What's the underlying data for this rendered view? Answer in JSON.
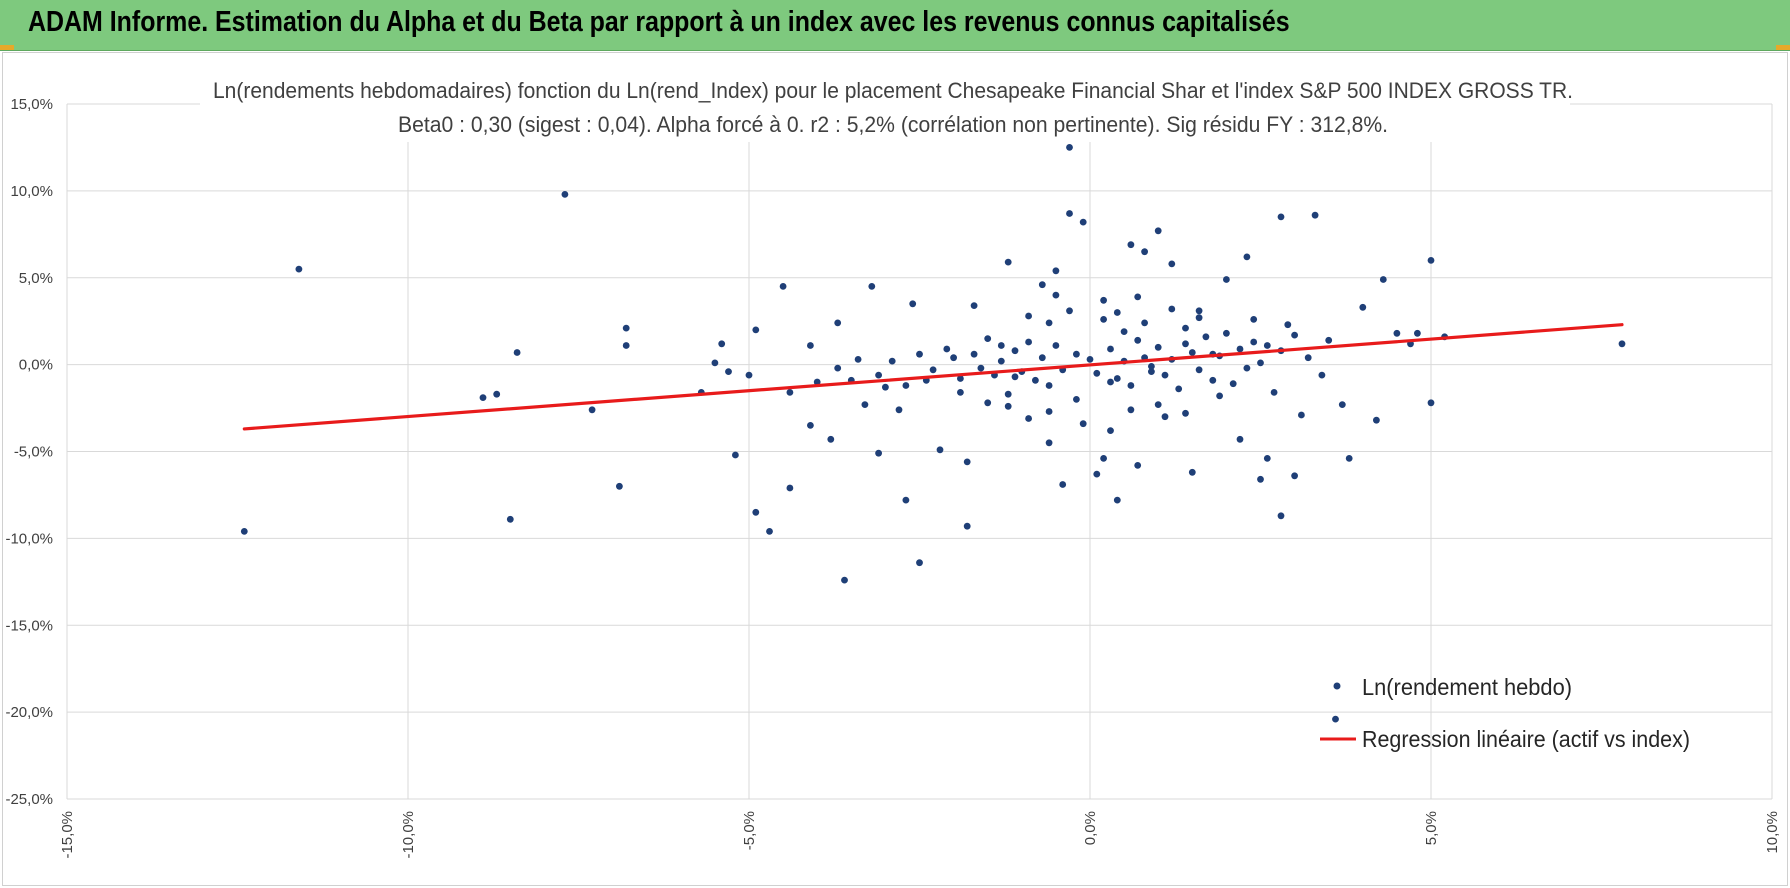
{
  "header": {
    "title": "ADAM Informe. Estimation du Alpha et du Beta par rapport à un index avec les revenus connus capitalisés"
  },
  "colors": {
    "header_bg": "#7ec97e",
    "points": "#1f3f77",
    "regression": "#e81b1b",
    "grid": "#d9d9d9"
  },
  "chart_data": {
    "type": "scatter",
    "title": "Ln(rendements hebdomadaires) fonction du Ln(rend_Index) pour le placement Chesapeake Financial Shar et l'index S&P 500 INDEX GROSS TR.",
    "subtitle": "Beta0 : 0,30 (sigest : 0,04). Alpha forcé à 0. r2 : 5,2% (corrélation non pertinente). Sig résidu FY : 312,8%.",
    "xlabel": "",
    "ylabel": "",
    "xlim": [
      -15,
      10
    ],
    "ylim": [
      -25,
      15
    ],
    "x_ticks": [
      "-15,0%",
      "-10,0%",
      "-5,0%",
      "0,0%",
      "5,0%",
      "10,0%"
    ],
    "y_ticks": [
      "15,0%",
      "10,0%",
      "5,0%",
      "0,0%",
      "-5,0%",
      "-10,0%",
      "-15,0%",
      "-20,0%",
      "-25,0%"
    ],
    "grid": true,
    "legend_position": "bottom-right",
    "series": [
      {
        "name": "Ln(rendement hebdo)",
        "type": "scatter",
        "points": [
          [
            -12.4,
            -9.6
          ],
          [
            -11.6,
            5.5
          ],
          [
            -8.4,
            0.7
          ],
          [
            -8.5,
            -8.9
          ],
          [
            -8.9,
            -1.9
          ],
          [
            -8.7,
            -1.7
          ],
          [
            -7.7,
            9.8
          ],
          [
            -7.3,
            -2.6
          ],
          [
            -6.9,
            -7.0
          ],
          [
            -6.8,
            2.1
          ],
          [
            -6.8,
            1.1
          ],
          [
            -5.7,
            -1.6
          ],
          [
            -5.5,
            0.1
          ],
          [
            -5.4,
            1.2
          ],
          [
            -5.3,
            -0.4
          ],
          [
            -5.2,
            -5.2
          ],
          [
            -5.0,
            -0.6
          ],
          [
            -4.9,
            -8.5
          ],
          [
            -4.9,
            2.0
          ],
          [
            -4.7,
            -9.6
          ],
          [
            -4.5,
            4.5
          ],
          [
            -4.4,
            -7.1
          ],
          [
            -4.4,
            -1.6
          ],
          [
            -4.1,
            -3.5
          ],
          [
            -4.1,
            1.1
          ],
          [
            -3.8,
            -4.3
          ],
          [
            -3.7,
            2.4
          ],
          [
            -3.6,
            -12.4
          ],
          [
            -3.5,
            -0.9
          ],
          [
            -3.3,
            -2.3
          ],
          [
            -3.2,
            4.5
          ],
          [
            -3.1,
            -5.1
          ],
          [
            -3.0,
            -1.3
          ],
          [
            -2.8,
            -2.6
          ],
          [
            -2.7,
            -7.8
          ],
          [
            -2.6,
            3.5
          ],
          [
            -2.5,
            -11.4
          ],
          [
            -2.4,
            -0.9
          ],
          [
            -2.2,
            -4.9
          ],
          [
            -2.1,
            0.9
          ],
          [
            -1.9,
            -1.6
          ],
          [
            -1.8,
            -9.3
          ],
          [
            -1.8,
            -5.6
          ],
          [
            -1.7,
            3.4
          ],
          [
            -1.5,
            -2.2
          ],
          [
            -1.3,
            1.1
          ],
          [
            -1.2,
            5.9
          ],
          [
            -1.1,
            -0.7
          ],
          [
            -0.9,
            -3.1
          ],
          [
            -0.7,
            4.6
          ],
          [
            -0.6,
            -4.5
          ],
          [
            -0.6,
            2.4
          ],
          [
            -0.5,
            5.4
          ],
          [
            -0.4,
            -6.9
          ],
          [
            -0.3,
            12.5
          ],
          [
            -0.3,
            8.7
          ],
          [
            -0.2,
            -2.0
          ],
          [
            -0.1,
            8.2
          ],
          [
            0.1,
            -6.3
          ],
          [
            0.2,
            -5.4
          ],
          [
            0.2,
            3.7
          ],
          [
            0.3,
            -1.0
          ],
          [
            0.4,
            -7.8
          ],
          [
            0.5,
            1.9
          ],
          [
            0.6,
            6.9
          ],
          [
            0.7,
            -5.8
          ],
          [
            0.8,
            6.5
          ],
          [
            0.9,
            -0.4
          ],
          [
            1.0,
            7.7
          ],
          [
            1.1,
            -3.0
          ],
          [
            1.2,
            5.8
          ],
          [
            1.4,
            1.2
          ],
          [
            1.5,
            -6.2
          ],
          [
            1.6,
            3.1
          ],
          [
            1.8,
            0.6
          ],
          [
            1.9,
            -1.8
          ],
          [
            2.0,
            4.9
          ],
          [
            2.2,
            -4.3
          ],
          [
            2.3,
            6.2
          ],
          [
            2.4,
            1.3
          ],
          [
            2.5,
            -6.6
          ],
          [
            2.6,
            -5.4
          ],
          [
            2.8,
            8.5
          ],
          [
            2.8,
            -8.7
          ],
          [
            2.9,
            2.3
          ],
          [
            3.0,
            -6.4
          ],
          [
            3.1,
            -2.9
          ],
          [
            3.3,
            8.6
          ],
          [
            3.5,
            1.4
          ],
          [
            3.6,
            -20.4
          ],
          [
            3.7,
            -2.3
          ],
          [
            3.8,
            -5.4
          ],
          [
            4.0,
            3.3
          ],
          [
            4.2,
            -3.2
          ],
          [
            4.3,
            4.9
          ],
          [
            4.5,
            1.8
          ],
          [
            4.7,
            1.2
          ],
          [
            4.8,
            1.8
          ],
          [
            5.0,
            -2.2
          ],
          [
            5.0,
            6.0
          ],
          [
            5.2,
            1.6
          ],
          [
            7.8,
            1.2
          ],
          [
            0.0,
            0.3
          ],
          [
            0.1,
            -0.5
          ],
          [
            -0.2,
            0.6
          ],
          [
            0.3,
            0.9
          ],
          [
            0.4,
            -0.8
          ],
          [
            0.5,
            0.2
          ],
          [
            0.6,
            -1.2
          ],
          [
            0.7,
            1.4
          ],
          [
            0.8,
            0.4
          ],
          [
            0.9,
            -0.1
          ],
          [
            1.0,
            1.0
          ],
          [
            1.1,
            -0.6
          ],
          [
            1.2,
            0.3
          ],
          [
            1.3,
            -1.4
          ],
          [
            1.4,
            2.1
          ],
          [
            1.5,
            0.7
          ],
          [
            1.6,
            -0.3
          ],
          [
            1.7,
            1.6
          ],
          [
            1.8,
            -0.9
          ],
          [
            1.9,
            0.5
          ],
          [
            2.0,
            1.8
          ],
          [
            2.1,
            -1.1
          ],
          [
            2.2,
            0.9
          ],
          [
            2.3,
            -0.2
          ],
          [
            2.4,
            2.6
          ],
          [
            2.5,
            0.1
          ],
          [
            2.6,
            1.1
          ],
          [
            2.7,
            -1.6
          ],
          [
            2.8,
            0.8
          ],
          [
            3.0,
            1.7
          ],
          [
            3.2,
            0.4
          ],
          [
            3.4,
            -0.6
          ],
          [
            -0.4,
            -0.3
          ],
          [
            -0.5,
            1.1
          ],
          [
            -0.6,
            -1.2
          ],
          [
            -0.7,
            0.4
          ],
          [
            -0.8,
            -0.9
          ],
          [
            -0.9,
            1.3
          ],
          [
            -1.0,
            -0.4
          ],
          [
            -1.1,
            0.8
          ],
          [
            -1.2,
            -1.7
          ],
          [
            -1.3,
            0.2
          ],
          [
            -1.4,
            -0.6
          ],
          [
            -1.5,
            1.5
          ],
          [
            -1.6,
            -0.2
          ],
          [
            -1.7,
            0.6
          ],
          [
            -1.9,
            -0.8
          ],
          [
            -2.0,
            0.4
          ],
          [
            -2.3,
            -0.3
          ],
          [
            -2.5,
            0.6
          ],
          [
            -2.7,
            -1.2
          ],
          [
            -2.9,
            0.2
          ],
          [
            -3.1,
            -0.6
          ],
          [
            -3.4,
            0.3
          ],
          [
            -3.7,
            -0.2
          ],
          [
            -4.0,
            -1.0
          ],
          [
            0.2,
            2.6
          ],
          [
            0.4,
            3.0
          ],
          [
            0.6,
            -2.6
          ],
          [
            0.8,
            2.4
          ],
          [
            1.0,
            -2.3
          ],
          [
            1.2,
            3.2
          ],
          [
            1.4,
            -2.8
          ],
          [
            1.6,
            2.7
          ],
          [
            -0.3,
            3.1
          ],
          [
            -0.6,
            -2.7
          ],
          [
            -0.9,
            2.8
          ],
          [
            -1.2,
            -2.4
          ],
          [
            -0.1,
            -3.4
          ],
          [
            0.3,
            -3.8
          ],
          [
            0.7,
            3.9
          ],
          [
            -0.5,
            4.0
          ]
        ]
      },
      {
        "name": "Regression linéaire (actif vs index)",
        "type": "line",
        "points": [
          [
            -12.4,
            -3.7
          ],
          [
            7.8,
            2.3
          ]
        ]
      }
    ]
  }
}
